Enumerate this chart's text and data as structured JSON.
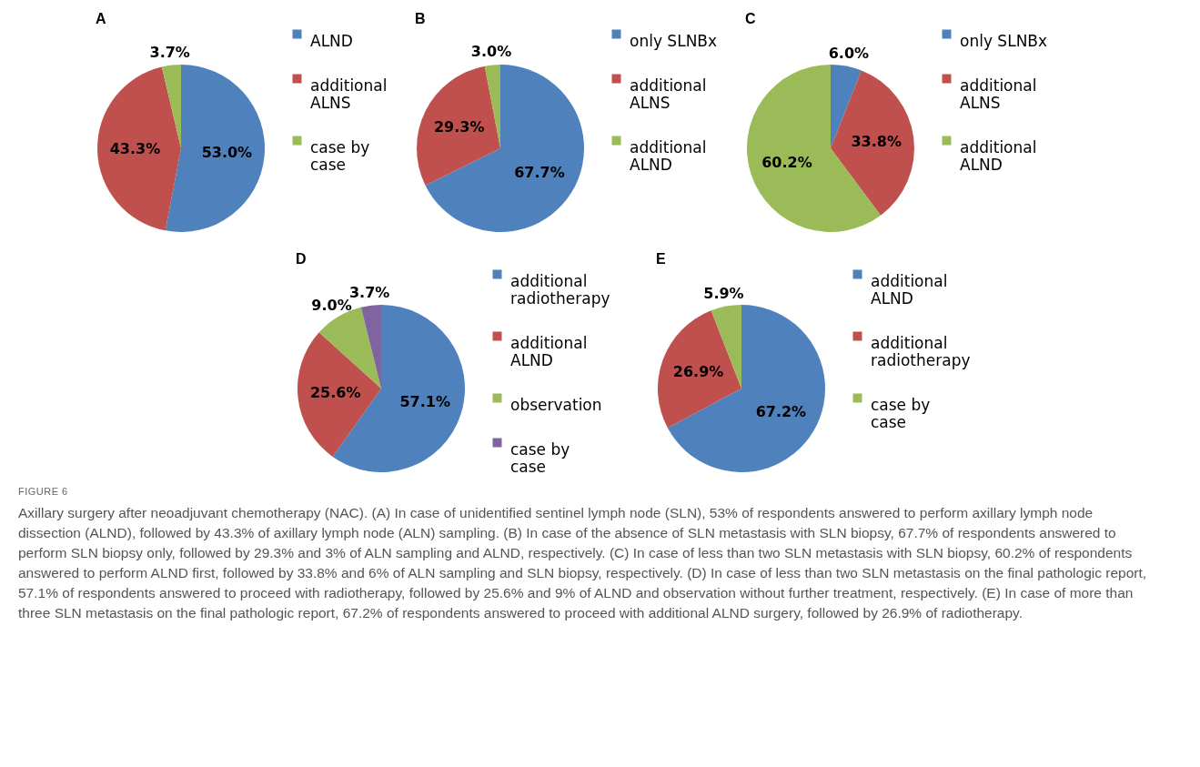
{
  "chart_data": [
    {
      "type": "pie",
      "title": "A",
      "categories": [
        "ALND",
        "additional ALNS",
        "case by case"
      ],
      "values": [
        53.0,
        43.3,
        3.7
      ],
      "colors": [
        "#4f81bd",
        "#c0504d",
        "#9bbb59"
      ],
      "value_labels": [
        "53.0%",
        "43.3%",
        "3.7%"
      ],
      "legend": "right"
    },
    {
      "type": "pie",
      "title": "B",
      "categories": [
        "only SLNBx",
        "additional ALNS",
        "additional ALND"
      ],
      "values": [
        67.7,
        29.3,
        3.0
      ],
      "colors": [
        "#4f81bd",
        "#c0504d",
        "#9bbb59"
      ],
      "value_labels": [
        "67.7%",
        "29.3%",
        "3.0%"
      ],
      "legend": "right"
    },
    {
      "type": "pie",
      "title": "C",
      "categories": [
        "only SLNBx",
        "additional ALNS",
        "additional ALND"
      ],
      "values": [
        6.0,
        33.8,
        60.2
      ],
      "colors": [
        "#4f81bd",
        "#c0504d",
        "#9bbb59"
      ],
      "value_labels": [
        "6.0%",
        "33.8%",
        "60.2%"
      ],
      "legend": "right"
    },
    {
      "type": "pie",
      "title": "D",
      "categories": [
        "additional radiotherapy",
        "additional ALND",
        "observation",
        "case by case"
      ],
      "values": [
        57.1,
        25.6,
        9.0,
        3.7
      ],
      "colors": [
        "#4f81bd",
        "#c0504d",
        "#9bbb59",
        "#8064a2"
      ],
      "value_labels": [
        "57.1%",
        "25.6%",
        "9.0%",
        "3.7%"
      ],
      "legend": "right"
    },
    {
      "type": "pie",
      "title": "E",
      "categories": [
        "additional ALND",
        "additional radiotherapy",
        "case by case"
      ],
      "values": [
        67.2,
        26.9,
        5.9
      ],
      "colors": [
        "#4f81bd",
        "#c0504d",
        "#9bbb59"
      ],
      "value_labels": [
        "67.2%",
        "26.9%",
        "5.9%"
      ],
      "legend": "right",
      "annotations": [
        "FIGURE 6",
        "Axillary surgery after neoadjuvant chemotherapy (NAC). (A) In case of unidentified sentinel lymph node (SLN), 53% of respondents answered to perform axillary lymph node dissection (ALND), followed by 43.3% of axillary lymph node (ALN) sampling. (B) In case of the absence of SLN metastasis with SLN biopsy, 67.7% of respondents answered to perform SLN biopsy only, followed by 29.3% and 3% of ALN sampling and ALND, respectively. (C) In case of less than two SLN metastasis with SLN biopsy, 60.2% of respondents answered to perform ALND first, followed by 33.8% and 6% of ALN sampling and SLN biopsy, respectively. (D) In case of less than two SLN metastasis on the final pathologic report, 57.1% of respondents answered to proceed with radiotherapy, followed by 25.6% and 9% of ALND and observation without further treatment, respectively. (E) In case of more than three SLN metastasis on the final pathologic report, 67.2% of respondents answered to proceed with additional ALND surgery, followed by 26.9% of radiotherapy."
      ]
    }
  ]
}
